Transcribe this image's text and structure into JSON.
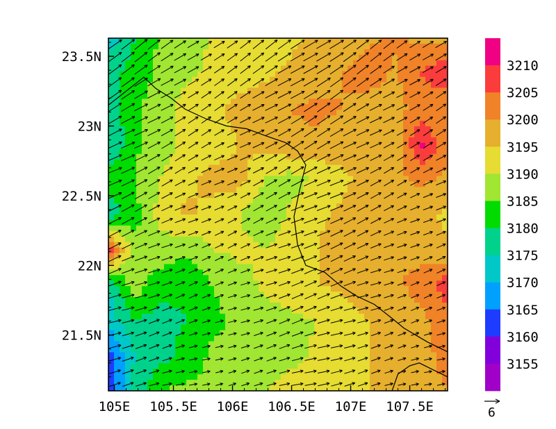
{
  "chart_data": {
    "type": "heatmap",
    "title": "",
    "xlabel": "",
    "ylabel": "",
    "xlim": [
      104.95,
      107.82
    ],
    "ylim": [
      21.1,
      23.63
    ],
    "x_ticks": [
      {
        "value": 105.0,
        "label": "105E"
      },
      {
        "value": 105.5,
        "label": "105.5E"
      },
      {
        "value": 106.0,
        "label": "106E"
      },
      {
        "value": 106.5,
        "label": "106.5E"
      },
      {
        "value": 107.0,
        "label": "107E"
      },
      {
        "value": 107.5,
        "label": "107.5E"
      }
    ],
    "y_ticks": [
      {
        "value": 21.5,
        "label": "21.5N"
      },
      {
        "value": 22.0,
        "label": "22N"
      },
      {
        "value": 22.5,
        "label": "22.5N"
      },
      {
        "value": 23.0,
        "label": "23N"
      },
      {
        "value": 23.5,
        "label": "23.5N"
      }
    ],
    "colorbar": {
      "levels": [
        "3155",
        "3160",
        "3165",
        "3170",
        "3175",
        "3180",
        "3185",
        "3190",
        "3195",
        "3200",
        "3205",
        "3210"
      ],
      "colors": [
        "#a000c8",
        "#8200dc",
        "#1e3cff",
        "#00a0ff",
        "#00c8c8",
        "#00d28c",
        "#00dc00",
        "#a0e632",
        "#e6dc32",
        "#e6af2d",
        "#f08228",
        "#fa3c3c",
        "#f00082"
      ]
    },
    "vector_reference": {
      "label": "6"
    },
    "grid_values": [
      [
        3172,
        3180,
        3186,
        3189,
        3190,
        3191,
        3192,
        3194,
        3196,
        3197,
        3199,
        3201,
        3199,
        3197
      ],
      [
        3178,
        3182,
        3186,
        3189,
        3191,
        3192,
        3194,
        3196,
        3198,
        3200,
        3203,
        3199,
        3205,
        3210
      ],
      [
        3176,
        3184,
        3188,
        3192,
        3194,
        3197,
        3199,
        3200,
        3201,
        3200,
        3197,
        3199,
        3201,
        3200
      ],
      [
        3175,
        3184,
        3188,
        3191,
        3192,
        3195,
        3197,
        3199,
        3199,
        3197,
        3195,
        3197,
        3211,
        3201
      ],
      [
        3183,
        3185,
        3190,
        3194,
        3197,
        3197,
        3190,
        3188,
        3191,
        3194,
        3197,
        3199,
        3201,
        3199
      ],
      [
        3176,
        3183,
        3192,
        3196,
        3193,
        3190,
        3187,
        3191,
        3194,
        3196,
        3198,
        3197,
        3196,
        3194
      ],
      [
        3208,
        3186,
        3188,
        3186,
        3190,
        3191,
        3190,
        3192,
        3195,
        3198,
        3200,
        3200,
        3198,
        3196
      ],
      [
        3175,
        3188,
        3182,
        3181,
        3185,
        3188,
        3191,
        3193,
        3195,
        3196,
        3197,
        3199,
        3202,
        3208
      ],
      [
        3172,
        3180,
        3178,
        3180,
        3184,
        3186,
        3188,
        3189,
        3190,
        3193,
        3195,
        3197,
        3199,
        3203
      ],
      [
        3163,
        3175,
        3178,
        3182,
        3186,
        3185,
        3186,
        3188,
        3191,
        3192,
        3195,
        3196,
        3198,
        3202
      ],
      [
        3160,
        3177,
        3185,
        3186,
        3186,
        3188,
        3190,
        3193,
        3193,
        3194,
        3195,
        3196,
        3198,
        3200
      ]
    ]
  }
}
